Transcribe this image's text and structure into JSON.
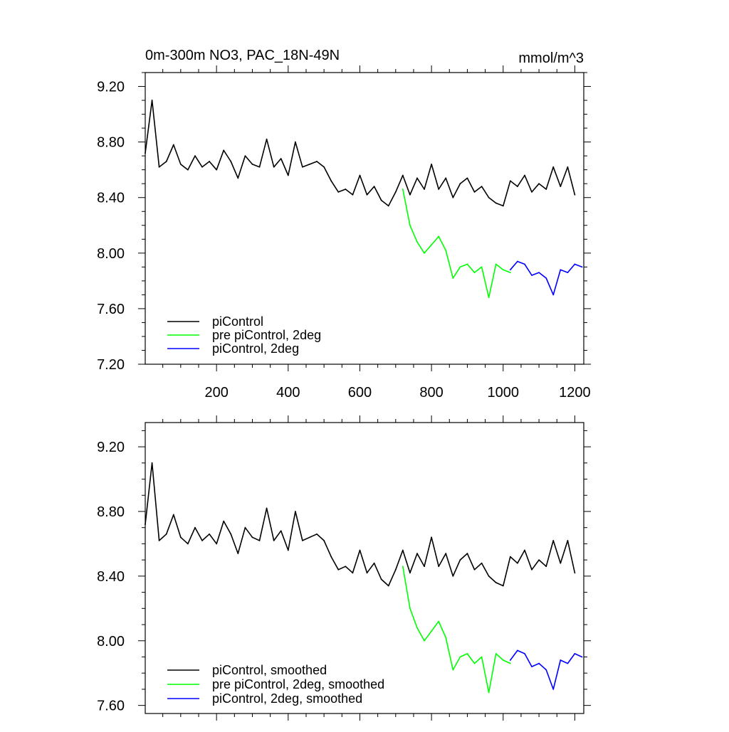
{
  "colors": {
    "piControl": "#000000",
    "pre_piControl_2deg": "#00ff00",
    "piControl_2deg": "#0000ff",
    "axis": "#000000",
    "background": "#ffffff"
  },
  "chart_data": [
    {
      "type": "line",
      "title": "0m-300m NO3, PAC_18N-49N",
      "units": "mmol/m^3",
      "grid": false,
      "legend_position": "bottom-left",
      "xlim": [
        1,
        1225
      ],
      "ylim": [
        7.2,
        9.3
      ],
      "xticks": [
        200,
        400,
        600,
        800,
        1000,
        1200
      ],
      "xtick_labels": [
        "200",
        "400",
        "600",
        "800",
        "1000",
        "1200"
      ],
      "yticks": [
        7.2,
        7.6,
        8.0,
        8.4,
        8.8,
        9.2
      ],
      "ytick_labels": [
        "7.20",
        "7.60",
        "8.00",
        "8.40",
        "8.80",
        "9.20"
      ],
      "series": [
        {
          "name": "piControl",
          "color": "#000000",
          "x": [
            1,
            20,
            40,
            60,
            80,
            100,
            120,
            140,
            160,
            180,
            200,
            220,
            240,
            260,
            280,
            300,
            320,
            340,
            360,
            380,
            400,
            420,
            440,
            460,
            480,
            500,
            520,
            540,
            560,
            580,
            600,
            620,
            640,
            660,
            680,
            700,
            720,
            740,
            760,
            780,
            800,
            820,
            840,
            860,
            880,
            900,
            920,
            940,
            960,
            980,
            1000,
            1020,
            1040,
            1060,
            1080,
            1100,
            1120,
            1140,
            1160,
            1180,
            1200
          ],
          "y": [
            8.72,
            9.1,
            8.62,
            8.66,
            8.78,
            8.64,
            8.6,
            8.7,
            8.62,
            8.66,
            8.6,
            8.74,
            8.66,
            8.54,
            8.7,
            8.64,
            8.62,
            8.82,
            8.62,
            8.68,
            8.56,
            8.8,
            8.62,
            8.64,
            8.66,
            8.62,
            8.52,
            8.44,
            8.46,
            8.42,
            8.56,
            8.42,
            8.48,
            8.38,
            8.34,
            8.44,
            8.56,
            8.42,
            8.54,
            8.46,
            8.64,
            8.46,
            8.54,
            8.4,
            8.5,
            8.54,
            8.44,
            8.48,
            8.4,
            8.36,
            8.34,
            8.52,
            8.48,
            8.56,
            8.44,
            8.5,
            8.46,
            8.62,
            8.48,
            8.62,
            8.42
          ]
        },
        {
          "name": "pre piControl, 2deg",
          "color": "#00ff00",
          "x": [
            720,
            740,
            760,
            780,
            800,
            820,
            840,
            860,
            880,
            900,
            920,
            940,
            960,
            980,
            1000,
            1020
          ],
          "y": [
            8.46,
            8.2,
            8.08,
            8.0,
            8.06,
            8.12,
            8.02,
            7.82,
            7.9,
            7.92,
            7.86,
            7.9,
            7.68,
            7.92,
            7.88,
            7.86
          ]
        },
        {
          "name": "piControl, 2deg",
          "color": "#0000ff",
          "x": [
            1020,
            1040,
            1060,
            1080,
            1100,
            1120,
            1140,
            1160,
            1180,
            1200,
            1220
          ],
          "y": [
            7.88,
            7.94,
            7.92,
            7.84,
            7.86,
            7.82,
            7.7,
            7.88,
            7.86,
            7.92,
            7.9
          ]
        }
      ]
    },
    {
      "type": "line",
      "title": "",
      "units": "",
      "grid": false,
      "legend_position": "bottom-left",
      "xlim": [
        1,
        1225
      ],
      "ylim": [
        7.55,
        9.35
      ],
      "xticks": [
        200,
        400,
        600,
        800,
        1000,
        1200
      ],
      "xtick_labels": [],
      "yticks": [
        7.6,
        8.0,
        8.4,
        8.8,
        9.2
      ],
      "ytick_labels": [
        "7.60",
        "8.00",
        "8.40",
        "8.80",
        "9.20"
      ],
      "series": [
        {
          "name": "piControl, smoothed",
          "color": "#000000",
          "x": [
            1,
            20,
            40,
            60,
            80,
            100,
            120,
            140,
            160,
            180,
            200,
            220,
            240,
            260,
            280,
            300,
            320,
            340,
            360,
            380,
            400,
            420,
            440,
            460,
            480,
            500,
            520,
            540,
            560,
            580,
            600,
            620,
            640,
            660,
            680,
            700,
            720,
            740,
            760,
            780,
            800,
            820,
            840,
            860,
            880,
            900,
            920,
            940,
            960,
            980,
            1000,
            1020,
            1040,
            1060,
            1080,
            1100,
            1120,
            1140,
            1160,
            1180,
            1200
          ],
          "y": [
            8.72,
            9.1,
            8.62,
            8.66,
            8.78,
            8.64,
            8.6,
            8.7,
            8.62,
            8.66,
            8.6,
            8.74,
            8.66,
            8.54,
            8.7,
            8.64,
            8.62,
            8.82,
            8.62,
            8.68,
            8.56,
            8.8,
            8.62,
            8.64,
            8.66,
            8.62,
            8.52,
            8.44,
            8.46,
            8.42,
            8.56,
            8.42,
            8.48,
            8.38,
            8.34,
            8.44,
            8.56,
            8.42,
            8.54,
            8.46,
            8.64,
            8.46,
            8.54,
            8.4,
            8.5,
            8.54,
            8.44,
            8.48,
            8.4,
            8.36,
            8.34,
            8.52,
            8.48,
            8.56,
            8.44,
            8.5,
            8.46,
            8.62,
            8.48,
            8.62,
            8.42
          ]
        },
        {
          "name": "pre piControl, 2deg, smoothed",
          "color": "#00ff00",
          "x": [
            720,
            740,
            760,
            780,
            800,
            820,
            840,
            860,
            880,
            900,
            920,
            940,
            960,
            980,
            1000,
            1020
          ],
          "y": [
            8.46,
            8.2,
            8.08,
            8.0,
            8.06,
            8.12,
            8.02,
            7.82,
            7.9,
            7.92,
            7.86,
            7.9,
            7.68,
            7.92,
            7.88,
            7.86
          ]
        },
        {
          "name": "piControl, 2deg, smoothed",
          "color": "#0000ff",
          "x": [
            1020,
            1040,
            1060,
            1080,
            1100,
            1120,
            1140,
            1160,
            1180,
            1200,
            1220
          ],
          "y": [
            7.88,
            7.94,
            7.92,
            7.84,
            7.86,
            7.82,
            7.7,
            7.88,
            7.86,
            7.92,
            7.9
          ]
        }
      ]
    }
  ]
}
